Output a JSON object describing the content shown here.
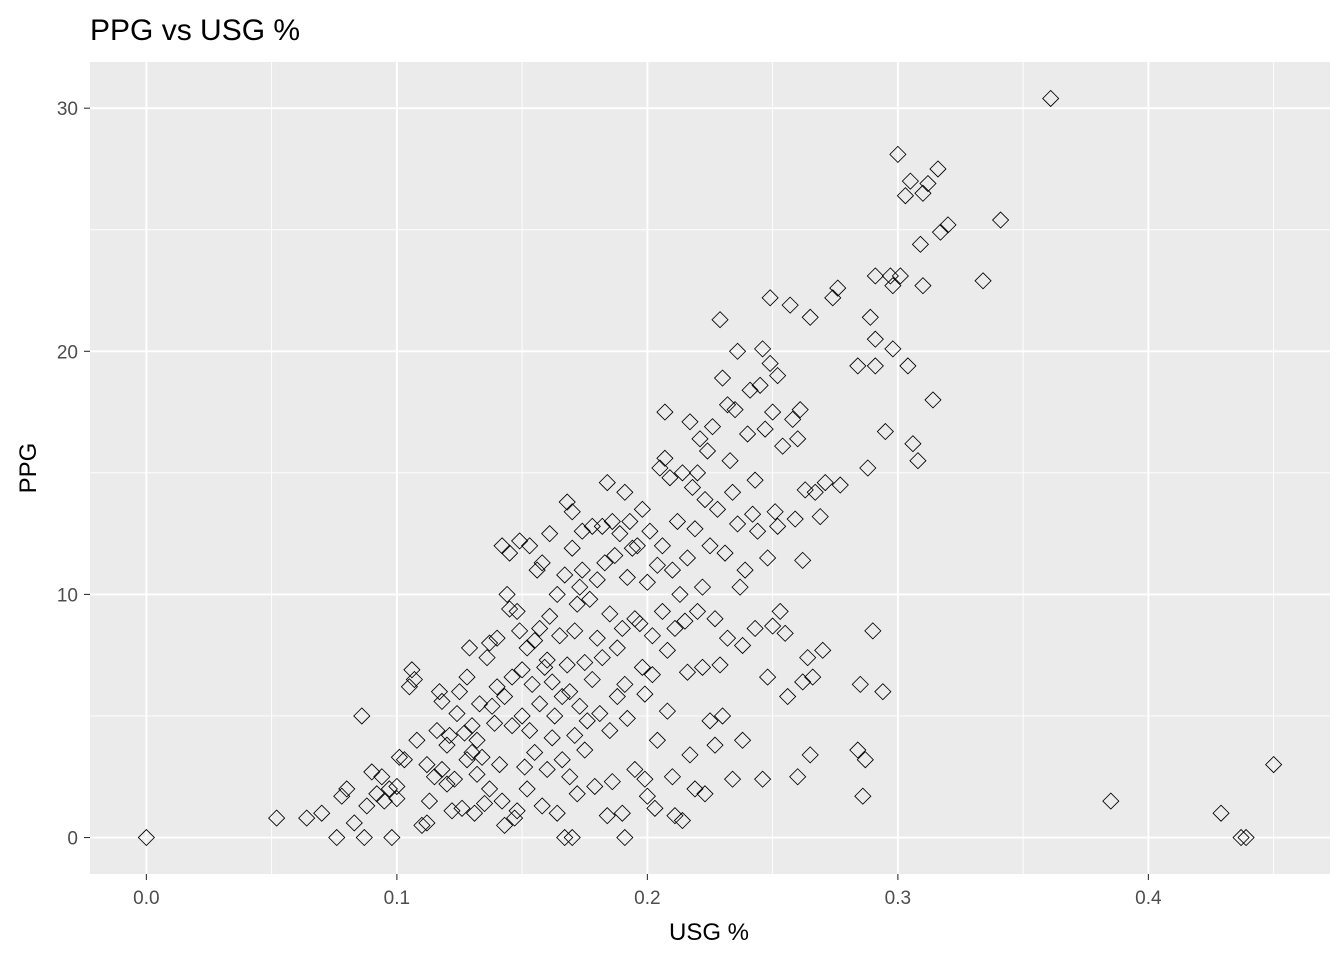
{
  "chart_data": {
    "type": "scatter",
    "title": "PPG vs USG %",
    "xlabel": "USG %",
    "ylabel": "PPG",
    "xlim": [
      -0.0225,
      0.4725
    ],
    "ylim": [
      -1.5,
      31.9
    ],
    "x_ticks": [
      0.0,
      0.1,
      0.2,
      0.3,
      0.4
    ],
    "x_tick_labels": [
      "0.0",
      "0.1",
      "0.2",
      "0.3",
      "0.4"
    ],
    "y_ticks": [
      0,
      10,
      20,
      30
    ],
    "y_tick_labels": [
      "0",
      "10",
      "20",
      "30"
    ],
    "grid": true,
    "marker": "open-diamond",
    "colors": {
      "panel": "#ebebeb",
      "grid": "#ffffff",
      "marker": "#000000"
    },
    "points": [
      [
        0.0,
        0.0
      ],
      [
        0.052,
        0.8
      ],
      [
        0.064,
        0.8
      ],
      [
        0.07,
        1.0
      ],
      [
        0.076,
        0.0
      ],
      [
        0.078,
        1.7
      ],
      [
        0.08,
        2.0
      ],
      [
        0.083,
        0.6
      ],
      [
        0.086,
        5.0
      ],
      [
        0.087,
        0.0
      ],
      [
        0.088,
        1.3
      ],
      [
        0.09,
        2.7
      ],
      [
        0.092,
        1.8
      ],
      [
        0.094,
        2.5
      ],
      [
        0.095,
        1.5
      ],
      [
        0.097,
        2.0
      ],
      [
        0.098,
        0.0
      ],
      [
        0.1,
        2.1
      ],
      [
        0.1,
        1.6
      ],
      [
        0.101,
        3.3
      ],
      [
        0.103,
        3.2
      ],
      [
        0.105,
        6.2
      ],
      [
        0.106,
        6.9
      ],
      [
        0.107,
        6.5
      ],
      [
        0.108,
        4.0
      ],
      [
        0.11,
        0.5
      ],
      [
        0.112,
        0.6
      ],
      [
        0.112,
        3.0
      ],
      [
        0.113,
        1.5
      ],
      [
        0.115,
        2.5
      ],
      [
        0.116,
        4.4
      ],
      [
        0.117,
        6.0
      ],
      [
        0.118,
        5.6
      ],
      [
        0.118,
        2.8
      ],
      [
        0.12,
        2.2
      ],
      [
        0.12,
        3.8
      ],
      [
        0.121,
        4.2
      ],
      [
        0.122,
        1.1
      ],
      [
        0.123,
        2.4
      ],
      [
        0.124,
        5.1
      ],
      [
        0.125,
        6.0
      ],
      [
        0.126,
        1.2
      ],
      [
        0.127,
        4.3
      ],
      [
        0.128,
        6.6
      ],
      [
        0.128,
        3.2
      ],
      [
        0.129,
        7.8
      ],
      [
        0.13,
        3.5
      ],
      [
        0.13,
        4.6
      ],
      [
        0.131,
        1.0
      ],
      [
        0.132,
        4.0
      ],
      [
        0.132,
        2.6
      ],
      [
        0.133,
        5.5
      ],
      [
        0.134,
        3.3
      ],
      [
        0.135,
        1.4
      ],
      [
        0.136,
        7.4
      ],
      [
        0.137,
        8.0
      ],
      [
        0.137,
        2.0
      ],
      [
        0.138,
        5.4
      ],
      [
        0.139,
        4.7
      ],
      [
        0.14,
        8.2
      ],
      [
        0.14,
        6.2
      ],
      [
        0.141,
        3.0
      ],
      [
        0.142,
        12.0
      ],
      [
        0.142,
        1.5
      ],
      [
        0.143,
        0.5
      ],
      [
        0.143,
        5.8
      ],
      [
        0.144,
        10.0
      ],
      [
        0.145,
        11.7
      ],
      [
        0.145,
        9.4
      ],
      [
        0.146,
        6.6
      ],
      [
        0.146,
        4.6
      ],
      [
        0.147,
        0.8
      ],
      [
        0.148,
        1.1
      ],
      [
        0.148,
        9.3
      ],
      [
        0.149,
        12.2
      ],
      [
        0.149,
        8.5
      ],
      [
        0.15,
        5.0
      ],
      [
        0.15,
        6.9
      ],
      [
        0.151,
        2.9
      ],
      [
        0.152,
        7.8
      ],
      [
        0.152,
        2.0
      ],
      [
        0.153,
        12.0
      ],
      [
        0.153,
        4.4
      ],
      [
        0.154,
        6.3
      ],
      [
        0.155,
        8.1
      ],
      [
        0.155,
        3.5
      ],
      [
        0.156,
        11.0
      ],
      [
        0.157,
        8.6
      ],
      [
        0.157,
        5.5
      ],
      [
        0.158,
        11.3
      ],
      [
        0.158,
        1.3
      ],
      [
        0.159,
        7.0
      ],
      [
        0.16,
        7.3
      ],
      [
        0.16,
        2.8
      ],
      [
        0.161,
        9.1
      ],
      [
        0.161,
        12.5
      ],
      [
        0.162,
        4.1
      ],
      [
        0.162,
        6.4
      ],
      [
        0.163,
        5.0
      ],
      [
        0.164,
        10.0
      ],
      [
        0.164,
        1.0
      ],
      [
        0.165,
        8.3
      ],
      [
        0.166,
        3.2
      ],
      [
        0.166,
        5.8
      ],
      [
        0.167,
        10.8
      ],
      [
        0.167,
        0.0
      ],
      [
        0.168,
        13.8
      ],
      [
        0.168,
        7.1
      ],
      [
        0.169,
        2.5
      ],
      [
        0.169,
        6.0
      ],
      [
        0.17,
        13.4
      ],
      [
        0.17,
        11.9
      ],
      [
        0.17,
        0.0
      ],
      [
        0.171,
        4.2
      ],
      [
        0.171,
        8.5
      ],
      [
        0.172,
        1.8
      ],
      [
        0.172,
        9.6
      ],
      [
        0.173,
        10.3
      ],
      [
        0.173,
        5.4
      ],
      [
        0.174,
        11.0
      ],
      [
        0.174,
        12.6
      ],
      [
        0.175,
        7.2
      ],
      [
        0.175,
        3.6
      ],
      [
        0.176,
        4.8
      ],
      [
        0.177,
        9.8
      ],
      [
        0.178,
        12.8
      ],
      [
        0.178,
        6.5
      ],
      [
        0.179,
        2.1
      ],
      [
        0.18,
        10.6
      ],
      [
        0.18,
        8.2
      ],
      [
        0.181,
        5.1
      ],
      [
        0.182,
        7.4
      ],
      [
        0.182,
        12.8
      ],
      [
        0.183,
        11.3
      ],
      [
        0.184,
        14.6
      ],
      [
        0.184,
        0.9
      ],
      [
        0.185,
        9.2
      ],
      [
        0.185,
        4.4
      ],
      [
        0.186,
        13.0
      ],
      [
        0.186,
        2.3
      ],
      [
        0.187,
        11.6
      ],
      [
        0.188,
        7.8
      ],
      [
        0.188,
        5.8
      ],
      [
        0.189,
        12.5
      ],
      [
        0.19,
        8.6
      ],
      [
        0.19,
        1.0
      ],
      [
        0.191,
        6.3
      ],
      [
        0.191,
        14.2
      ],
      [
        0.191,
        0.0
      ],
      [
        0.192,
        10.7
      ],
      [
        0.192,
        4.9
      ],
      [
        0.193,
        13.0
      ],
      [
        0.194,
        11.9
      ],
      [
        0.195,
        9.0
      ],
      [
        0.195,
        2.8
      ],
      [
        0.196,
        12.0
      ],
      [
        0.197,
        8.8
      ],
      [
        0.198,
        13.5
      ],
      [
        0.198,
        7.0
      ],
      [
        0.199,
        5.9
      ],
      [
        0.199,
        2.4
      ],
      [
        0.2,
        10.5
      ],
      [
        0.2,
        1.7
      ],
      [
        0.201,
        12.6
      ],
      [
        0.202,
        8.3
      ],
      [
        0.202,
        6.7
      ],
      [
        0.203,
        1.2
      ],
      [
        0.204,
        11.2
      ],
      [
        0.204,
        4.0
      ],
      [
        0.205,
        15.2
      ],
      [
        0.206,
        12.0
      ],
      [
        0.206,
        9.3
      ],
      [
        0.207,
        17.5
      ],
      [
        0.207,
        15.6
      ],
      [
        0.208,
        7.7
      ],
      [
        0.208,
        5.2
      ],
      [
        0.209,
        14.8
      ],
      [
        0.21,
        11.0
      ],
      [
        0.21,
        2.5
      ],
      [
        0.211,
        8.6
      ],
      [
        0.211,
        0.9
      ],
      [
        0.212,
        13.0
      ],
      [
        0.213,
        10.0
      ],
      [
        0.214,
        15.0
      ],
      [
        0.214,
        0.7
      ],
      [
        0.215,
        8.9
      ],
      [
        0.216,
        11.5
      ],
      [
        0.216,
        6.8
      ],
      [
        0.217,
        17.1
      ],
      [
        0.217,
        3.4
      ],
      [
        0.218,
        14.4
      ],
      [
        0.219,
        12.7
      ],
      [
        0.219,
        2.0
      ],
      [
        0.22,
        15.0
      ],
      [
        0.22,
        9.3
      ],
      [
        0.221,
        16.4
      ],
      [
        0.222,
        10.3
      ],
      [
        0.222,
        7.0
      ],
      [
        0.223,
        13.9
      ],
      [
        0.223,
        1.8
      ],
      [
        0.224,
        15.9
      ],
      [
        0.225,
        12.0
      ],
      [
        0.225,
        4.8
      ],
      [
        0.226,
        16.9
      ],
      [
        0.227,
        9.0
      ],
      [
        0.227,
        3.8
      ],
      [
        0.228,
        13.5
      ],
      [
        0.229,
        21.3
      ],
      [
        0.229,
        7.1
      ],
      [
        0.23,
        18.9
      ],
      [
        0.23,
        5.0
      ],
      [
        0.231,
        11.7
      ],
      [
        0.232,
        17.8
      ],
      [
        0.232,
        8.2
      ],
      [
        0.233,
        15.5
      ],
      [
        0.234,
        14.2
      ],
      [
        0.234,
        2.4
      ],
      [
        0.235,
        17.6
      ],
      [
        0.236,
        12.9
      ],
      [
        0.236,
        20.0
      ],
      [
        0.237,
        10.3
      ],
      [
        0.238,
        7.9
      ],
      [
        0.238,
        4.0
      ],
      [
        0.239,
        11.0
      ],
      [
        0.24,
        16.6
      ],
      [
        0.241,
        18.4
      ],
      [
        0.242,
        13.3
      ],
      [
        0.243,
        14.7
      ],
      [
        0.243,
        8.6
      ],
      [
        0.244,
        12.6
      ],
      [
        0.245,
        18.6
      ],
      [
        0.246,
        20.1
      ],
      [
        0.246,
        2.4
      ],
      [
        0.247,
        16.8
      ],
      [
        0.248,
        11.5
      ],
      [
        0.248,
        6.6
      ],
      [
        0.249,
        22.2
      ],
      [
        0.249,
        19.5
      ],
      [
        0.25,
        17.5
      ],
      [
        0.25,
        8.7
      ],
      [
        0.251,
        13.4
      ],
      [
        0.252,
        19.0
      ],
      [
        0.252,
        12.8
      ],
      [
        0.253,
        9.3
      ],
      [
        0.254,
        16.1
      ],
      [
        0.255,
        8.4
      ],
      [
        0.256,
        5.8
      ],
      [
        0.257,
        21.9
      ],
      [
        0.258,
        17.2
      ],
      [
        0.259,
        13.1
      ],
      [
        0.26,
        16.4
      ],
      [
        0.26,
        2.5
      ],
      [
        0.261,
        17.6
      ],
      [
        0.262,
        11.4
      ],
      [
        0.262,
        6.4
      ],
      [
        0.263,
        14.3
      ],
      [
        0.264,
        7.4
      ],
      [
        0.265,
        21.4
      ],
      [
        0.265,
        3.4
      ],
      [
        0.266,
        6.6
      ],
      [
        0.267,
        14.2
      ],
      [
        0.269,
        13.2
      ],
      [
        0.27,
        7.7
      ],
      [
        0.271,
        14.6
      ],
      [
        0.274,
        22.2
      ],
      [
        0.276,
        22.6
      ],
      [
        0.277,
        14.5
      ],
      [
        0.284,
        19.4
      ],
      [
        0.284,
        3.6
      ],
      [
        0.285,
        6.3
      ],
      [
        0.286,
        1.7
      ],
      [
        0.287,
        3.2
      ],
      [
        0.288,
        15.2
      ],
      [
        0.289,
        21.4
      ],
      [
        0.29,
        8.5
      ],
      [
        0.291,
        20.5
      ],
      [
        0.291,
        19.4
      ],
      [
        0.291,
        23.1
      ],
      [
        0.294,
        6.0
      ],
      [
        0.295,
        16.7
      ],
      [
        0.297,
        23.1
      ],
      [
        0.298,
        20.1
      ],
      [
        0.298,
        22.7
      ],
      [
        0.3,
        28.1
      ],
      [
        0.301,
        23.1
      ],
      [
        0.303,
        26.4
      ],
      [
        0.304,
        19.4
      ],
      [
        0.305,
        27.0
      ],
      [
        0.306,
        16.2
      ],
      [
        0.308,
        15.5
      ],
      [
        0.309,
        24.4
      ],
      [
        0.31,
        26.5
      ],
      [
        0.31,
        22.7
      ],
      [
        0.312,
        26.9
      ],
      [
        0.314,
        18.0
      ],
      [
        0.316,
        27.5
      ],
      [
        0.317,
        24.9
      ],
      [
        0.32,
        25.2
      ],
      [
        0.334,
        22.9
      ],
      [
        0.341,
        25.4
      ],
      [
        0.361,
        30.4
      ],
      [
        0.385,
        1.5
      ],
      [
        0.429,
        1.0
      ],
      [
        0.437,
        0.0
      ],
      [
        0.439,
        0.0
      ],
      [
        0.45,
        3.0
      ]
    ]
  }
}
